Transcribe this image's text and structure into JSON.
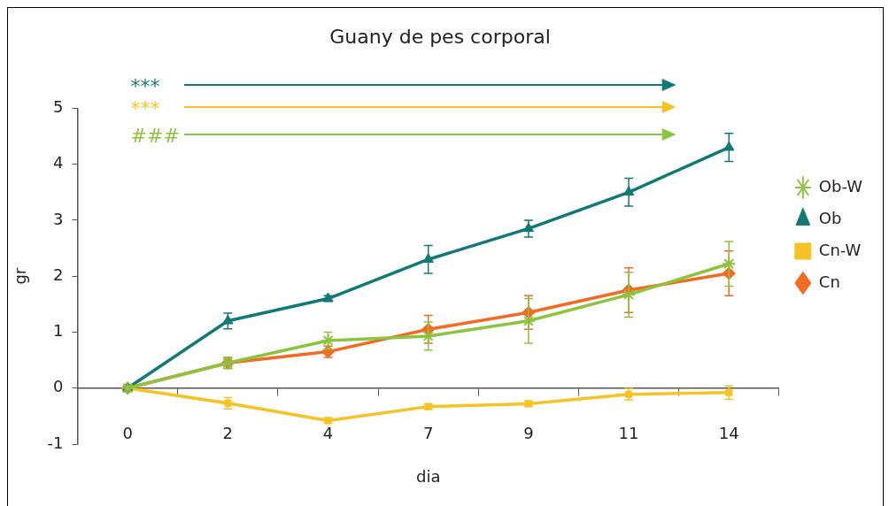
{
  "chart_data": {
    "type": "line",
    "title": "Guany de pes corporal",
    "xlabel": "dia",
    "ylabel": "gr",
    "categories": [
      "0",
      "2",
      "4",
      "7",
      "9",
      "11",
      "14"
    ],
    "series": [
      {
        "name": "Cn",
        "color": "#f26b21",
        "marker": "diamond",
        "values": [
          0,
          0.45,
          0.65,
          1.05,
          1.35,
          1.75,
          2.05
        ],
        "errors": [
          null,
          0.1,
          0.1,
          0.25,
          0.3,
          0.4,
          0.4
        ]
      },
      {
        "name": "Cn-W",
        "color": "#f5c324",
        "marker": "square",
        "values": [
          0,
          -0.27,
          -0.58,
          -0.33,
          -0.28,
          -0.11,
          -0.08
        ],
        "errors": [
          null,
          0.1,
          0.05,
          0.05,
          0.05,
          0.1,
          0.12
        ]
      },
      {
        "name": "Ob",
        "color": "#117a74",
        "marker": "triangle",
        "values": [
          0,
          1.2,
          1.6,
          2.3,
          2.85,
          3.5,
          4.3
        ],
        "errors": [
          null,
          0.14,
          0.05,
          0.25,
          0.15,
          0.25,
          0.25
        ]
      },
      {
        "name": "Ob-W",
        "color": "#8dc43f",
        "marker": "cross",
        "values": [
          0,
          0.45,
          0.85,
          0.93,
          1.2,
          1.67,
          2.22
        ],
        "errors": [
          null,
          0.1,
          0.15,
          0.25,
          0.4,
          0.4,
          0.4
        ]
      }
    ],
    "annotations": [
      "***",
      "***",
      "###"
    ],
    "ylim": [
      -1,
      5
    ],
    "yticks": [
      -1,
      0,
      1,
      2,
      3,
      4,
      5
    ],
    "grid": false,
    "legend": "right"
  }
}
